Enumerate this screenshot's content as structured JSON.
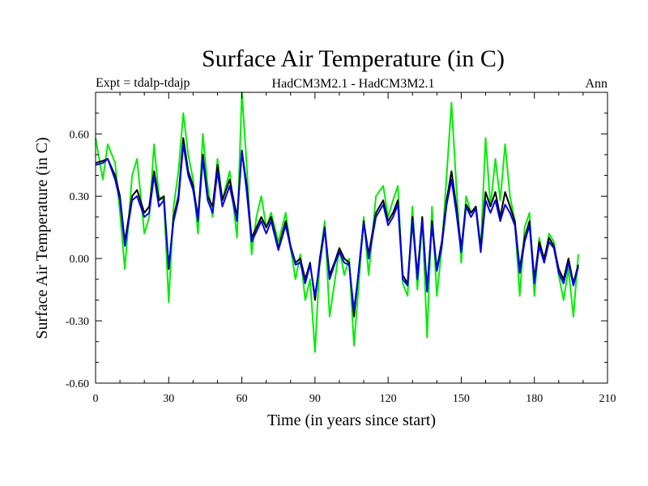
{
  "chart_data": {
    "type": "line",
    "title": "Surface Air Temperature (in C)",
    "subtitle_left": "Expt = tdalp-tdajp",
    "subtitle_center": "HadCM3M2.1 - HadCM3M2.1",
    "subtitle_right": "Ann",
    "xlabel": "Time (in years since start)",
    "ylabel": "Surface Air Temperature (in C)",
    "xlim": [
      0,
      210
    ],
    "ylim": [
      -0.6,
      0.8
    ],
    "xticks": [
      0,
      30,
      60,
      90,
      120,
      150,
      180,
      210
    ],
    "xtick_labels": [
      "0",
      "30",
      "60",
      "90",
      "120",
      "150",
      "180",
      "210"
    ],
    "yticks": [
      -0.6,
      -0.3,
      0.0,
      0.3,
      0.6
    ],
    "ytick_labels": [
      "-0.60",
      "-0.30",
      "0.00",
      "0.30",
      "0.60"
    ],
    "series": [
      {
        "name": "green",
        "color": "#00ee00",
        "x": [
          0,
          3,
          5,
          8,
          10,
          12,
          15,
          17,
          20,
          22,
          24,
          26,
          28,
          30,
          32,
          34,
          36,
          38,
          40,
          42,
          44,
          46,
          48,
          50,
          52,
          55,
          58,
          60,
          62,
          64,
          66,
          68,
          70,
          72,
          75,
          78,
          80,
          82,
          84,
          86,
          88,
          90,
          92,
          94,
          96,
          98,
          100,
          102,
          104,
          106,
          108,
          110,
          112,
          115,
          118,
          120,
          122,
          124,
          126,
          128,
          130,
          132,
          134,
          136,
          138,
          140,
          142,
          144,
          146,
          148,
          150,
          152,
          154,
          156,
          158,
          160,
          162,
          164,
          166,
          168,
          170,
          172,
          174,
          176,
          178,
          180,
          182,
          184,
          186,
          188,
          190,
          192,
          194,
          196,
          198
        ],
        "y": [
          0.58,
          0.38,
          0.55,
          0.46,
          0.22,
          -0.05,
          0.4,
          0.48,
          0.12,
          0.2,
          0.55,
          0.3,
          0.28,
          -0.21,
          0.25,
          0.42,
          0.7,
          0.5,
          0.38,
          0.12,
          0.6,
          0.35,
          0.2,
          0.48,
          0.28,
          0.42,
          0.1,
          0.8,
          0.45,
          0.02,
          0.2,
          0.3,
          0.15,
          0.22,
          0.08,
          0.22,
          0.05,
          -0.1,
          0.02,
          -0.2,
          -0.1,
          -0.45,
          0.0,
          0.18,
          -0.28,
          -0.12,
          0.05,
          -0.08,
          0.0,
          -0.42,
          -0.12,
          0.2,
          -0.08,
          0.3,
          0.35,
          0.2,
          0.28,
          0.35,
          -0.12,
          -0.18,
          0.25,
          -0.15,
          0.2,
          -0.38,
          0.25,
          -0.18,
          0.05,
          0.4,
          0.75,
          0.35,
          -0.02,
          0.3,
          0.22,
          0.25,
          0.05,
          0.58,
          0.25,
          0.48,
          0.28,
          0.55,
          0.3,
          0.18,
          -0.18,
          0.15,
          0.22,
          -0.18,
          0.1,
          -0.02,
          0.12,
          0.08,
          -0.08,
          -0.2,
          -0.05,
          -0.28,
          0.02
        ]
      },
      {
        "name": "black",
        "color": "#000000",
        "x": [
          0,
          3,
          5,
          8,
          10,
          12,
          15,
          17,
          20,
          22,
          24,
          26,
          28,
          30,
          32,
          34,
          36,
          38,
          40,
          42,
          44,
          46,
          48,
          50,
          52,
          55,
          58,
          60,
          62,
          64,
          66,
          68,
          70,
          72,
          75,
          78,
          80,
          82,
          84,
          86,
          88,
          90,
          92,
          94,
          96,
          98,
          100,
          102,
          104,
          106,
          108,
          110,
          112,
          115,
          118,
          120,
          122,
          124,
          126,
          128,
          130,
          132,
          134,
          136,
          138,
          140,
          142,
          144,
          146,
          148,
          150,
          152,
          154,
          156,
          158,
          160,
          162,
          164,
          166,
          168,
          170,
          172,
          174,
          176,
          178,
          180,
          182,
          184,
          186,
          188,
          190,
          192,
          194,
          196,
          198
        ],
        "y": [
          0.46,
          0.47,
          0.48,
          0.4,
          0.3,
          0.08,
          0.3,
          0.33,
          0.22,
          0.25,
          0.42,
          0.28,
          0.3,
          -0.05,
          0.2,
          0.3,
          0.58,
          0.42,
          0.35,
          0.2,
          0.5,
          0.3,
          0.25,
          0.45,
          0.28,
          0.38,
          0.2,
          0.52,
          0.35,
          0.1,
          0.15,
          0.2,
          0.15,
          0.2,
          0.05,
          0.18,
          0.06,
          -0.02,
          0.0,
          -0.1,
          -0.02,
          -0.2,
          0.0,
          0.15,
          -0.08,
          -0.02,
          0.05,
          0.0,
          -0.02,
          -0.28,
          -0.05,
          0.18,
          0.02,
          0.22,
          0.28,
          0.18,
          0.22,
          0.28,
          -0.08,
          -0.12,
          0.2,
          -0.08,
          0.2,
          -0.15,
          0.18,
          -0.05,
          0.08,
          0.28,
          0.42,
          0.25,
          0.05,
          0.26,
          0.22,
          0.25,
          0.05,
          0.32,
          0.25,
          0.32,
          0.2,
          0.32,
          0.25,
          0.18,
          -0.05,
          0.1,
          0.18,
          -0.1,
          0.08,
          0.0,
          0.1,
          0.06,
          -0.05,
          -0.1,
          0.0,
          -0.12,
          -0.03
        ]
      },
      {
        "name": "blue",
        "color": "#0000ee",
        "x": [
          0,
          3,
          5,
          8,
          10,
          12,
          15,
          17,
          20,
          22,
          24,
          26,
          28,
          30,
          32,
          34,
          36,
          38,
          40,
          42,
          44,
          46,
          48,
          50,
          52,
          55,
          58,
          60,
          62,
          64,
          66,
          68,
          70,
          72,
          75,
          78,
          80,
          82,
          84,
          86,
          88,
          90,
          92,
          94,
          96,
          98,
          100,
          102,
          104,
          106,
          108,
          110,
          112,
          115,
          118,
          120,
          122,
          124,
          126,
          128,
          130,
          132,
          134,
          136,
          138,
          140,
          142,
          144,
          146,
          148,
          150,
          152,
          154,
          156,
          158,
          160,
          162,
          164,
          166,
          168,
          170,
          172,
          174,
          176,
          178,
          180,
          182,
          184,
          186,
          188,
          190,
          192,
          194,
          196,
          198
        ],
        "y": [
          0.45,
          0.46,
          0.48,
          0.38,
          0.28,
          0.06,
          0.28,
          0.3,
          0.2,
          0.22,
          0.4,
          0.25,
          0.28,
          -0.04,
          0.18,
          0.28,
          0.55,
          0.4,
          0.33,
          0.18,
          0.48,
          0.28,
          0.22,
          0.42,
          0.25,
          0.35,
          0.18,
          0.52,
          0.32,
          0.08,
          0.13,
          0.18,
          0.12,
          0.18,
          0.04,
          0.16,
          0.05,
          -0.03,
          -0.02,
          -0.12,
          -0.03,
          -0.18,
          -0.02,
          0.14,
          -0.1,
          -0.03,
          0.03,
          -0.02,
          -0.03,
          -0.25,
          -0.06,
          0.17,
          0.0,
          0.2,
          0.26,
          0.16,
          0.2,
          0.26,
          -0.1,
          -0.13,
          0.18,
          -0.1,
          0.18,
          -0.16,
          0.16,
          -0.06,
          0.06,
          0.26,
          0.38,
          0.22,
          0.03,
          0.25,
          0.2,
          0.24,
          0.03,
          0.28,
          0.22,
          0.28,
          0.18,
          0.26,
          0.22,
          0.16,
          -0.07,
          0.08,
          0.16,
          -0.12,
          0.06,
          -0.02,
          0.08,
          0.05,
          -0.07,
          -0.12,
          -0.02,
          -0.13,
          -0.04
        ]
      }
    ]
  }
}
